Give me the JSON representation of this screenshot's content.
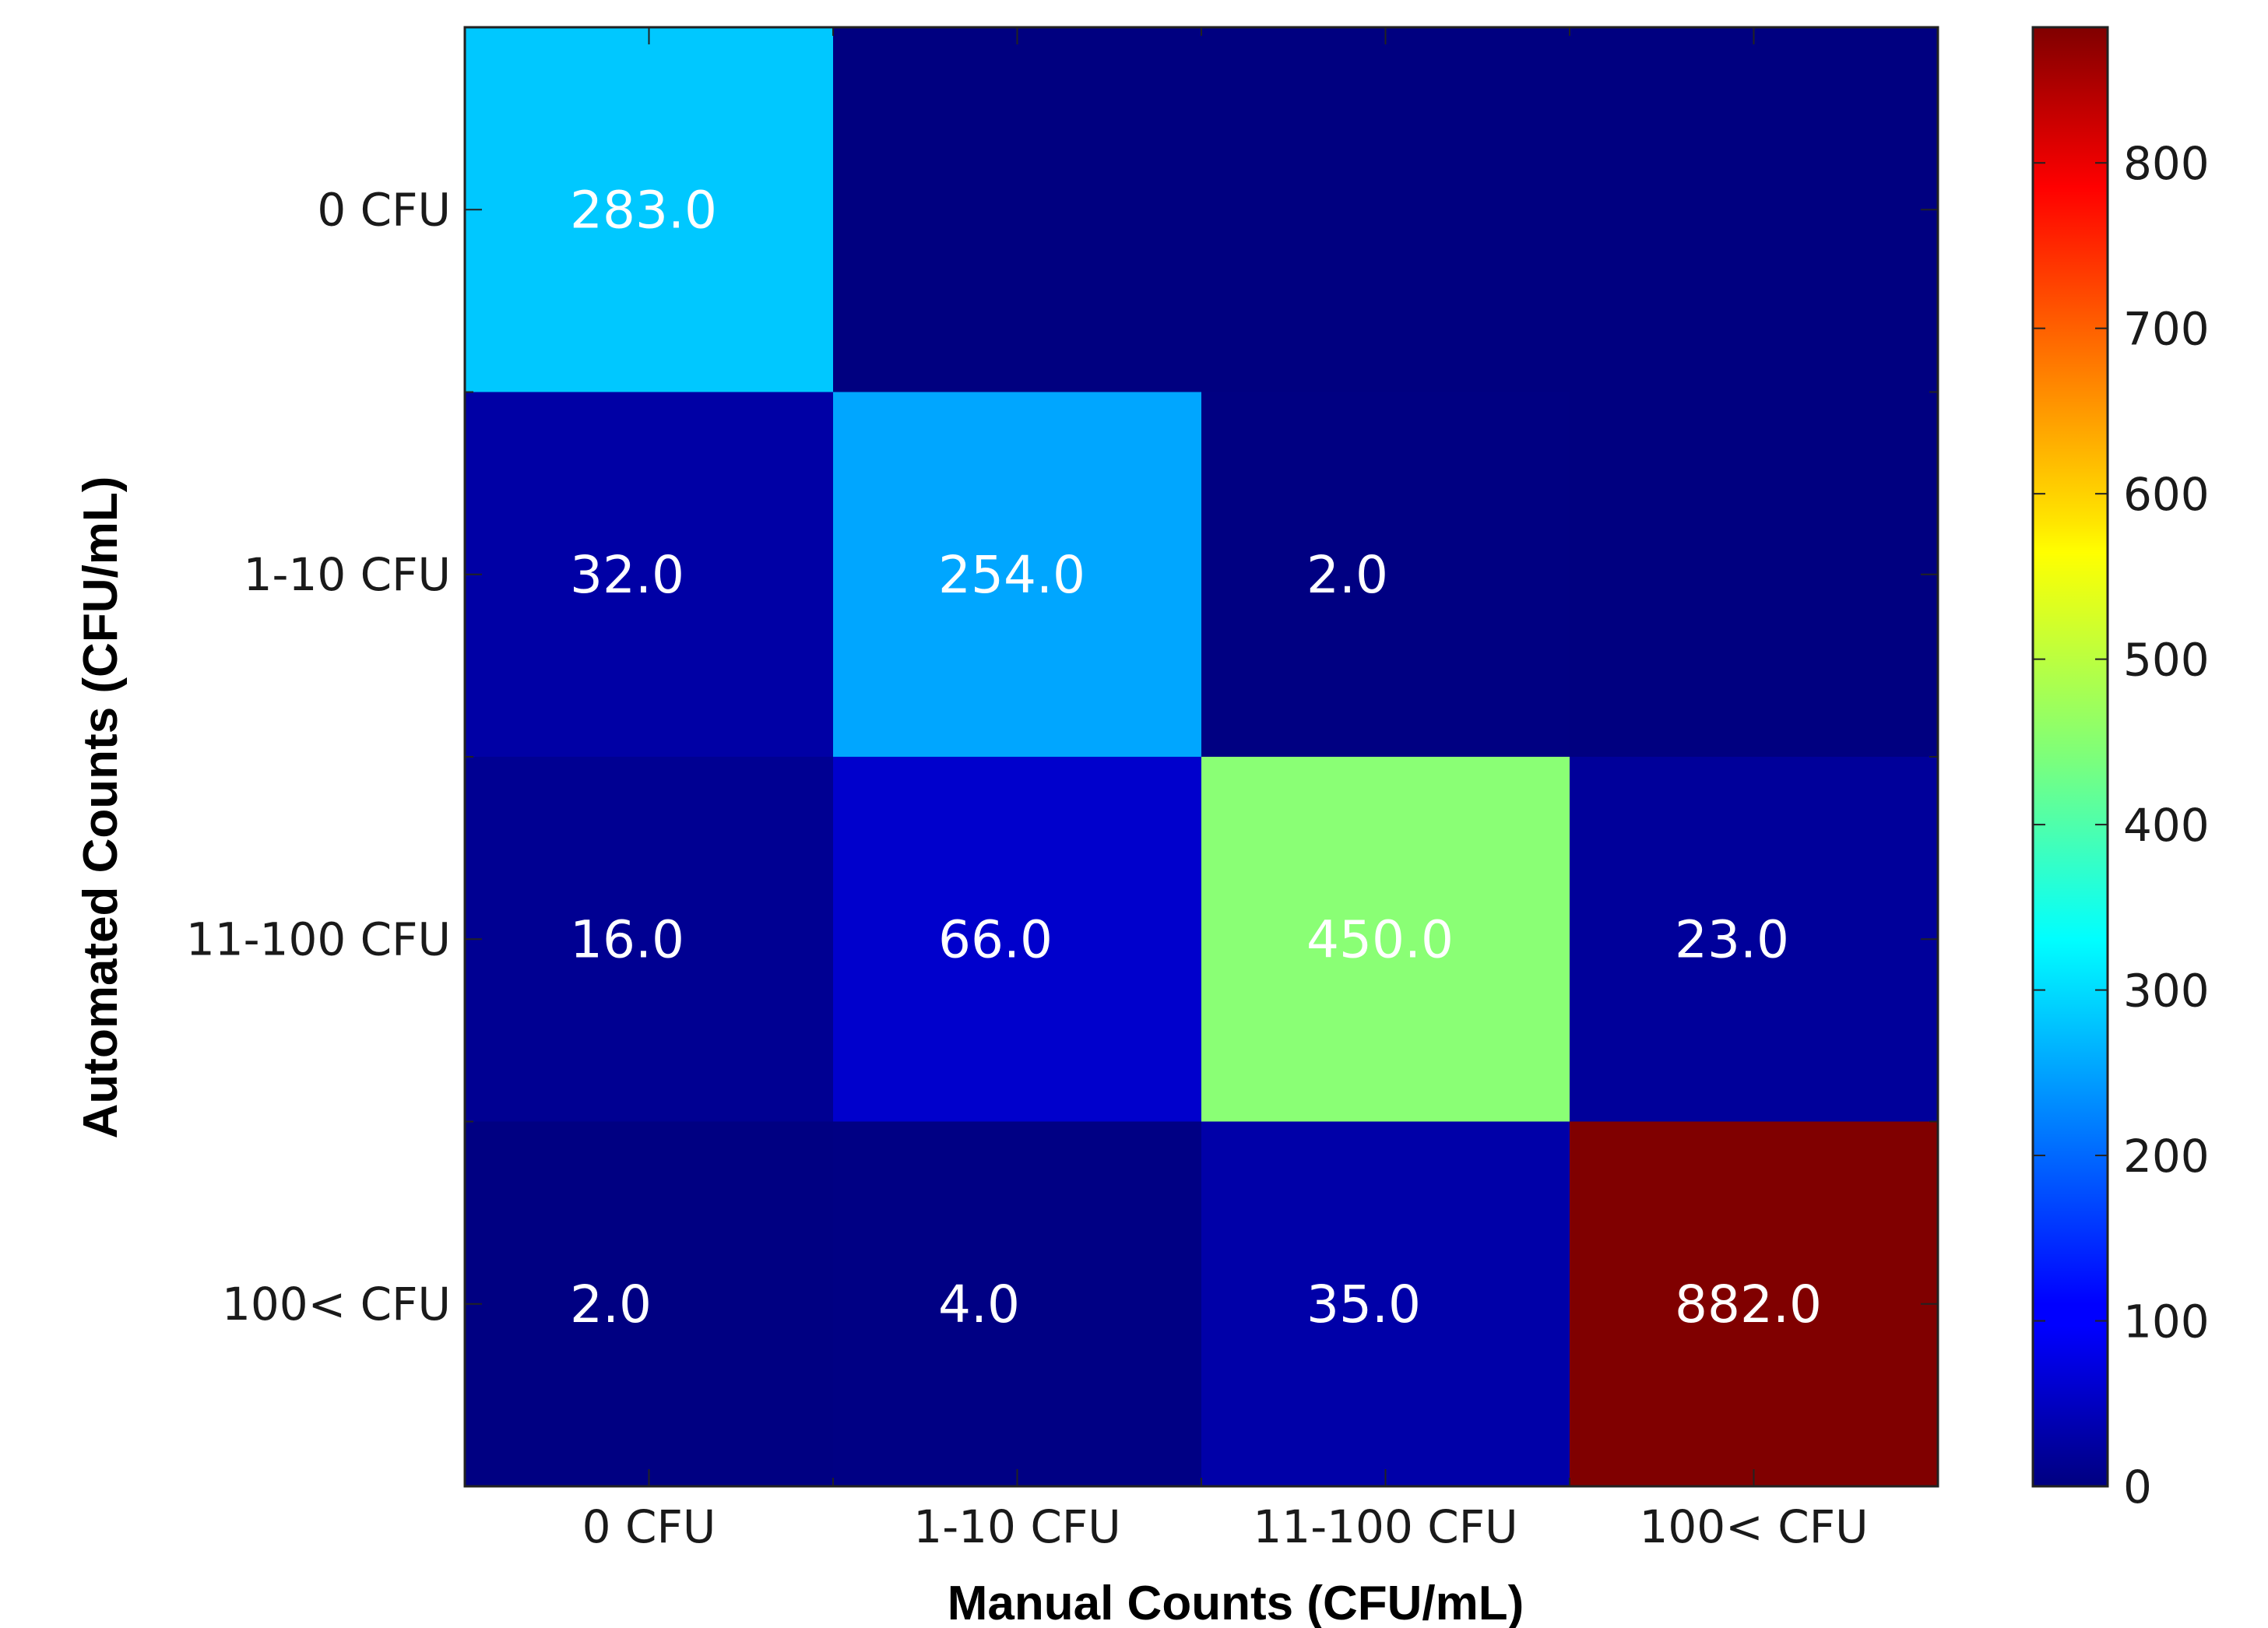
{
  "chart_data": {
    "type": "heatmap",
    "title": "",
    "xlabel": "Manual Counts (CFU/mL)",
    "ylabel": "Automated Counts (CFU/mL)",
    "x_categories": [
      "0 CFU",
      "1-10 CFU",
      "11-100 CFU",
      "100< CFU"
    ],
    "y_categories": [
      "0 CFU",
      "1-10 CFU",
      "11-100 CFU",
      "100< CFU"
    ],
    "values": [
      [
        283,
        0,
        0,
        0
      ],
      [
        32,
        254,
        2,
        0
      ],
      [
        16,
        66,
        450,
        23
      ],
      [
        2,
        4,
        35,
        882
      ]
    ],
    "cell_labels": [
      [
        "283.0",
        "",
        "",
        ""
      ],
      [
        "32.0",
        "254.0",
        "2.0",
        ""
      ],
      [
        "16.0",
        "66.0",
        "450.0",
        "23.0"
      ],
      [
        "2.0",
        "4.0",
        "35.0",
        "882.0"
      ]
    ],
    "colorscale": "jet",
    "colorbar": {
      "range": [
        0,
        882
      ],
      "ticks": [
        0,
        100,
        200,
        300,
        400,
        500,
        600,
        700,
        800
      ],
      "tick_labels": [
        "0",
        "100",
        "200",
        "300",
        "400",
        "500",
        "600",
        "700",
        "800"
      ]
    }
  }
}
